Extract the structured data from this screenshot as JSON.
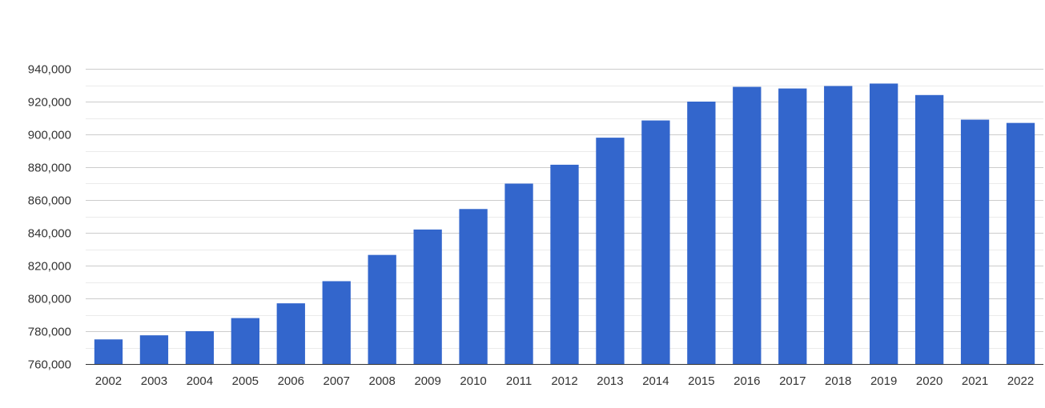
{
  "chart_data": {
    "type": "bar",
    "title": "",
    "xlabel": "",
    "ylabel": "",
    "categories": [
      "2002",
      "2003",
      "2004",
      "2005",
      "2006",
      "2007",
      "2008",
      "2009",
      "2010",
      "2011",
      "2012",
      "2013",
      "2014",
      "2015",
      "2016",
      "2017",
      "2018",
      "2019",
      "2020",
      "2021",
      "2022"
    ],
    "values": [
      775000,
      777500,
      780000,
      788000,
      797000,
      810500,
      826500,
      842000,
      854500,
      870000,
      881500,
      898000,
      908500,
      920000,
      929000,
      928000,
      929500,
      931000,
      924000,
      909000,
      907000
    ],
    "ylim": [
      760000,
      940000
    ],
    "yticks": [
      760000,
      780000,
      800000,
      820000,
      840000,
      860000,
      880000,
      900000,
      920000,
      940000
    ],
    "ytick_labels": [
      "760,000",
      "780,000",
      "800,000",
      "820,000",
      "840,000",
      "860,000",
      "880,000",
      "900,000",
      "920,000",
      "940,000"
    ],
    "grid": true,
    "legend": "none",
    "bar_color": "#3366cc",
    "grid_color": "#cccccc",
    "minor_grid_color": "#ebebeb"
  }
}
